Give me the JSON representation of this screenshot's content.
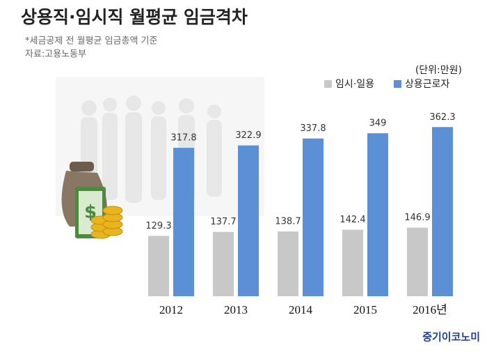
{
  "chart_data": {
    "type": "bar",
    "title": "상용직·임시직 월평균 임금격차",
    "subtitle": "*세금공제 전 월평균 임금총액 기준",
    "source": "자료:고용노동부",
    "unit": "(단위:만원)",
    "brand": "중기이코노미",
    "categories": [
      "2012",
      "2013",
      "2014",
      "2015",
      "2016년"
    ],
    "series": [
      {
        "name": "임시·일용",
        "color": "#c8c8c8",
        "values": [
          129.3,
          137.7,
          138.7,
          142.4,
          146.9
        ]
      },
      {
        "name": "상용근로자",
        "color": "#5b8fd6",
        "values": [
          317.8,
          322.9,
          337.8,
          349,
          362.3
        ]
      }
    ]
  }
}
